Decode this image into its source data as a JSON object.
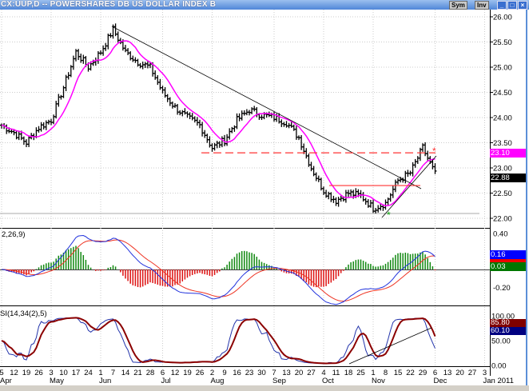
{
  "window": {
    "title": "CX:UUP,D -- POWERSHARES DB US DOLLAR INDEX B",
    "sym_button": "Sym",
    "inv_button": "Inv"
  },
  "colors": {
    "price_bars": "#000000",
    "moving_average": "#ff00ff",
    "trendline": "#000000",
    "resistance": "#ff3333",
    "macd": "#2233dd",
    "signal": "#ee3322",
    "hist_pos": "#118811",
    "hist_neg": "#dd1111",
    "stoch_k": "#2233aa",
    "stoch_d": "#8b0000"
  },
  "chart_data": [
    {
      "type": "bar",
      "panel": "price",
      "y_ticks": [
        "26.00",
        "25.50",
        "25.00",
        "24.50",
        "24.00",
        "23.50",
        "23.00",
        "22.50",
        "22.00"
      ],
      "ylim": [
        21.95,
        26.1
      ],
      "x_weeks": [
        "Apr 5",
        "Apr 12",
        "Apr 19",
        "Apr 26",
        "May 3",
        "May 10",
        "May 17",
        "May 24",
        "Jun 1",
        "Jun 7",
        "Jun 14",
        "Jun 21",
        "Jun 28",
        "Jul 6",
        "Jul 12",
        "Jul 19",
        "Jul 26",
        "Aug 2",
        "Aug 9",
        "Aug 16",
        "Aug 23",
        "Aug 30",
        "Sep 7",
        "Sep 13",
        "Sep 20",
        "Sep 27",
        "Oct 4",
        "Oct 11",
        "Oct 18",
        "Oct 25",
        "Nov 1",
        "Nov 8",
        "Nov 15",
        "Nov 22",
        "Nov 29",
        "Dec 6"
      ],
      "weekly_close": [
        23.85,
        23.7,
        23.5,
        23.8,
        23.95,
        24.6,
        25.3,
        25.0,
        25.3,
        25.75,
        25.3,
        25.1,
        25.0,
        24.5,
        24.2,
        24.0,
        23.85,
        23.4,
        23.55,
        23.95,
        24.15,
        24.05,
        24.0,
        23.9,
        23.6,
        23.0,
        22.55,
        22.35,
        22.5,
        22.45,
        22.2,
        22.3,
        22.75,
        22.9,
        23.4,
        22.88
      ],
      "last_values": {
        "ma": "23.10",
        "close": "22.88"
      },
      "annotations": {
        "resistance_1": 23.3,
        "resistance_2": 22.65
      }
    },
    {
      "type": "line",
      "panel": "macd",
      "label": "2,26,9)",
      "y_ticks": [
        "0.40",
        "-0.20"
      ],
      "last_values": {
        "macd": "0.16",
        "hist": "0.03"
      }
    },
    {
      "type": "line",
      "panel": "stochastic",
      "label": "SI(14,34(2),5)",
      "y_ticks": [
        "100.00",
        "50.00",
        "0.00"
      ],
      "last_values": {
        "d": "85.80",
        "k": "60.10"
      }
    }
  ],
  "x_axis": {
    "days": [
      "5",
      "12",
      "19",
      "26",
      "3",
      "10",
      "17",
      "24",
      "1",
      "7",
      "14",
      "21",
      "28",
      "6",
      "12",
      "19",
      "26",
      "2",
      "9",
      "16",
      "23",
      "30",
      "7",
      "13",
      "20",
      "27",
      "4",
      "11",
      "18",
      "25",
      "1",
      "8",
      "15",
      "22",
      "29",
      "6",
      "13",
      "20",
      "27",
      "3"
    ],
    "months": [
      {
        "label": "Apr",
        "week": 0
      },
      {
        "label": "May",
        "week": 4
      },
      {
        "label": "Jun",
        "week": 8
      },
      {
        "label": "Jul",
        "week": 13
      },
      {
        "label": "Aug",
        "week": 17
      },
      {
        "label": "Sep",
        "week": 22
      },
      {
        "label": "Oct",
        "week": 26
      },
      {
        "label": "Nov",
        "week": 30
      },
      {
        "label": "Dec",
        "week": 35
      },
      {
        "label": "Jan 2011",
        "week": 39
      }
    ]
  }
}
